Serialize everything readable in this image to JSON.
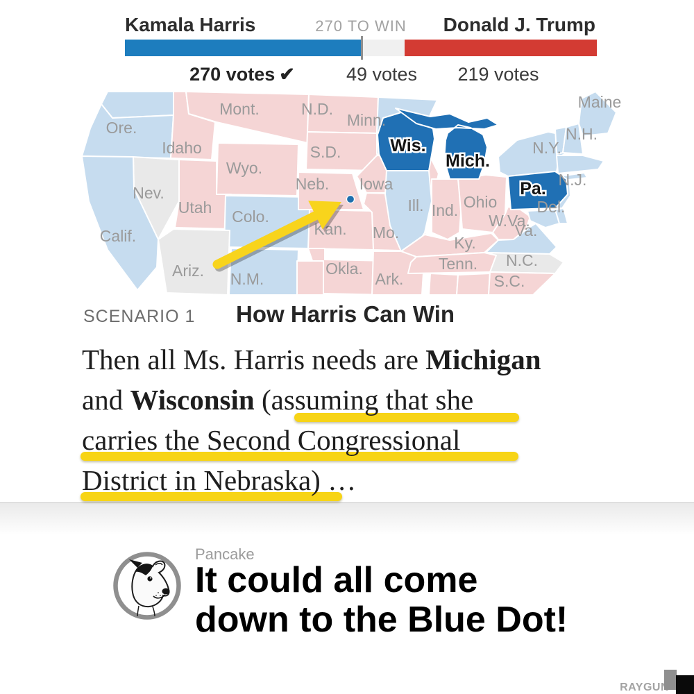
{
  "scoreboard": {
    "left": {
      "name": "Kamala Harris",
      "votes": 270,
      "votes_label": "270 votes",
      "check": "✔"
    },
    "center": {
      "label": "270 TO WIN",
      "votes": 49,
      "votes_label": "49 votes"
    },
    "right": {
      "name": "Donald J. Trump",
      "votes": 219,
      "votes_label": "219 votes"
    },
    "total_votes": 538,
    "colors": {
      "dem": "#1d7dbe",
      "undecided": "#f0f0f0",
      "rep": "#d33b33",
      "tick": "#8f8f8f"
    }
  },
  "map": {
    "colors": {
      "solid_dem": "#2070b4",
      "lean_dem": "#c6dcef",
      "lean_rep": "#f5d5d5",
      "tossup": "#e9e9e9"
    },
    "dot_color": "#1d6fae",
    "arrow_color": "#f8d41c",
    "states": [
      {
        "id": "wash",
        "label": "",
        "rating": "lean_dem"
      },
      {
        "id": "ore",
        "label": "Ore.",
        "rating": "lean_dem"
      },
      {
        "id": "idaho",
        "label": "Idaho",
        "rating": "lean_rep"
      },
      {
        "id": "mont",
        "label": "Mont.",
        "rating": "lean_rep"
      },
      {
        "id": "nd",
        "label": "N.D.",
        "rating": "lean_rep"
      },
      {
        "id": "sd",
        "label": "S.D.",
        "rating": "lean_rep"
      },
      {
        "id": "minn",
        "label": "Minn.",
        "rating": "lean_dem"
      },
      {
        "id": "wyo",
        "label": "Wyo.",
        "rating": "lean_rep"
      },
      {
        "id": "nev",
        "label": "Nev.",
        "rating": "tossup"
      },
      {
        "id": "utah",
        "label": "Utah",
        "rating": "lean_rep"
      },
      {
        "id": "colo",
        "label": "Colo.",
        "rating": "lean_dem"
      },
      {
        "id": "calif",
        "label": "Calif.",
        "rating": "lean_dem"
      },
      {
        "id": "ariz",
        "label": "Ariz.",
        "rating": "tossup"
      },
      {
        "id": "nm",
        "label": "N.M.",
        "rating": "lean_dem"
      },
      {
        "id": "neb",
        "label": "Neb.",
        "rating": "lean_rep"
      },
      {
        "id": "kan",
        "label": "Kan.",
        "rating": "lean_rep"
      },
      {
        "id": "okla",
        "label": "Okla.",
        "rating": "lean_rep"
      },
      {
        "id": "tex",
        "label": "",
        "rating": "lean_rep"
      },
      {
        "id": "iowa",
        "label": "Iowa",
        "rating": "lean_rep"
      },
      {
        "id": "mo",
        "label": "Mo.",
        "rating": "lean_rep"
      },
      {
        "id": "ark",
        "label": "Ark.",
        "rating": "lean_rep"
      },
      {
        "id": "ill",
        "label": "Ill.",
        "rating": "lean_dem"
      },
      {
        "id": "ind",
        "label": "Ind.",
        "rating": "lean_rep"
      },
      {
        "id": "ohio",
        "label": "Ohio",
        "rating": "lean_rep"
      },
      {
        "id": "ky",
        "label": "Ky.",
        "rating": "lean_rep"
      },
      {
        "id": "tenn",
        "label": "Tenn.",
        "rating": "lean_rep"
      },
      {
        "id": "miss",
        "label": "",
        "rating": "lean_rep"
      },
      {
        "id": "ala",
        "label": "",
        "rating": "lean_rep"
      },
      {
        "id": "wva",
        "label": "W.Va.",
        "rating": "lean_rep"
      },
      {
        "id": "va",
        "label": "Va.",
        "rating": "lean_dem"
      },
      {
        "id": "nc",
        "label": "N.C.",
        "rating": "tossup"
      },
      {
        "id": "sc",
        "label": "S.C.",
        "rating": "lean_rep"
      },
      {
        "id": "ny",
        "label": "N.Y.",
        "rating": "lean_dem"
      },
      {
        "id": "nj",
        "label": "N.J.",
        "rating": "lean_dem"
      },
      {
        "id": "md",
        "label": "",
        "rating": "lean_dem"
      },
      {
        "id": "del",
        "label": "Del.",
        "rating": "lean_dem"
      },
      {
        "id": "vt",
        "label": "",
        "rating": "lean_dem"
      },
      {
        "id": "nh",
        "label": "N.H.",
        "rating": "lean_dem"
      },
      {
        "id": "mass",
        "label": "",
        "rating": "lean_dem"
      },
      {
        "id": "li",
        "label": "",
        "rating": "lean_dem"
      },
      {
        "id": "maine",
        "label": "Maine",
        "rating": "lean_dem"
      },
      {
        "id": "wis",
        "label": "Wis.",
        "rating": "solid_dem"
      },
      {
        "id": "mich",
        "label": "Mich.",
        "rating": "solid_dem"
      },
      {
        "id": "pa",
        "label": "Pa.",
        "rating": "solid_dem"
      }
    ]
  },
  "scenario": {
    "kicker": "SCENARIO 1",
    "title": "How Harris Can Win"
  },
  "body": {
    "lines": [
      [
        {
          "text": "Then all Ms. Harris needs are ",
          "bold": false
        },
        {
          "text": "Michigan",
          "bold": true
        }
      ],
      [
        {
          "text": "and ",
          "bold": false
        },
        {
          "text": "Wisconsin",
          "bold": true
        },
        {
          "text": " (assuming that she",
          "bold": false
        }
      ],
      [
        {
          "text": "carries the Second Congressional",
          "bold": false
        }
      ],
      [
        {
          "text": "District in Nebraska) …",
          "bold": false
        }
      ]
    ]
  },
  "caption": {
    "author": "Pancake",
    "text_lines": [
      "It could all come",
      "down to the Blue Dot!"
    ]
  },
  "watermark": {
    "text": "RAYGUN"
  }
}
